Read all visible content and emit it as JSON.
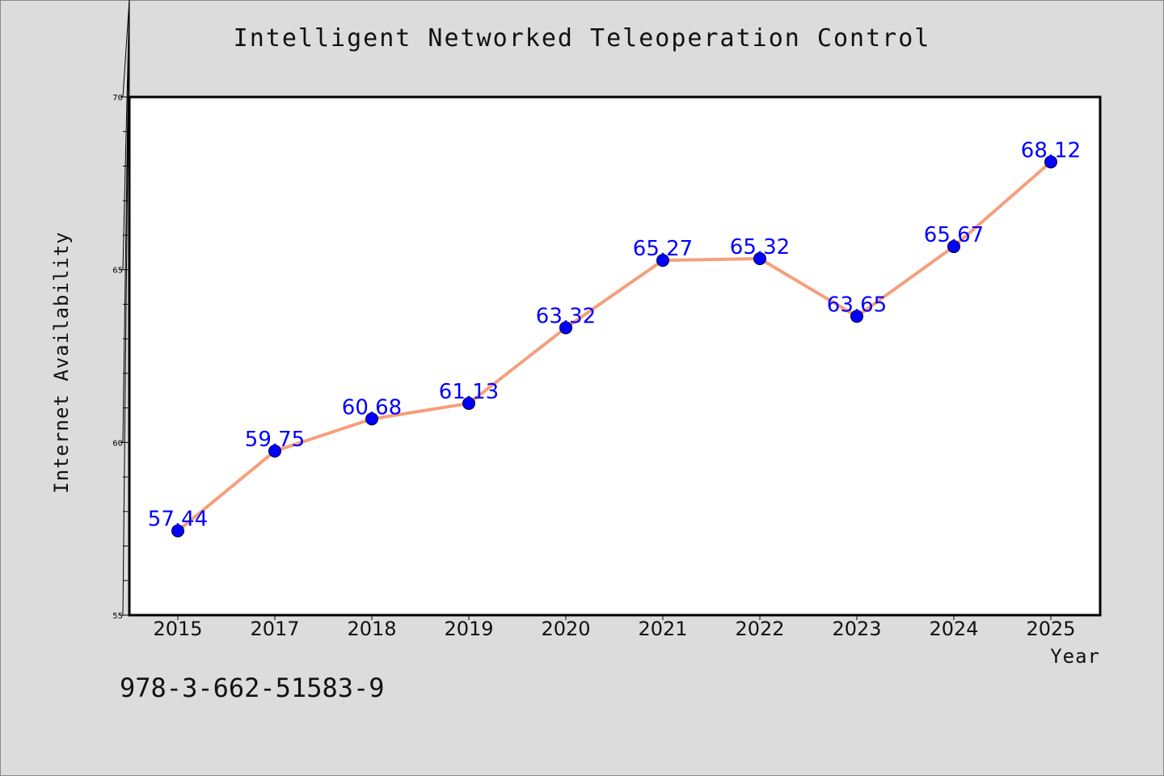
{
  "title": "Intelligent Networked Teleoperation Control",
  "footnote": "978-3-662-51583-9",
  "colors": {
    "background": "#dcdcdc",
    "plot_background": "#ffffff",
    "line": "#f4a07c",
    "marker": "#0000ff",
    "label": "#0000ff"
  },
  "chart_data": {
    "type": "line",
    "xlabel": "Year",
    "ylabel": "Internet Availability",
    "ylim": [
      55,
      70
    ],
    "yticks": [
      55,
      60,
      65,
      70
    ],
    "grid": false,
    "categories": [
      "2015",
      "2017",
      "2018",
      "2019",
      "2020",
      "2021",
      "2022",
      "2023",
      "2024",
      "2025"
    ],
    "series": [
      {
        "values": [
          57.44,
          59.75,
          60.68,
          61.13,
          63.32,
          65.27,
          65.32,
          63.65,
          65.67,
          68.12
        ],
        "data_labels": [
          "57.44",
          "59.75",
          "60.68",
          "61.13",
          "63.32",
          "65.27",
          "65.32",
          "63.65",
          "65.67",
          "68.12"
        ]
      }
    ]
  }
}
